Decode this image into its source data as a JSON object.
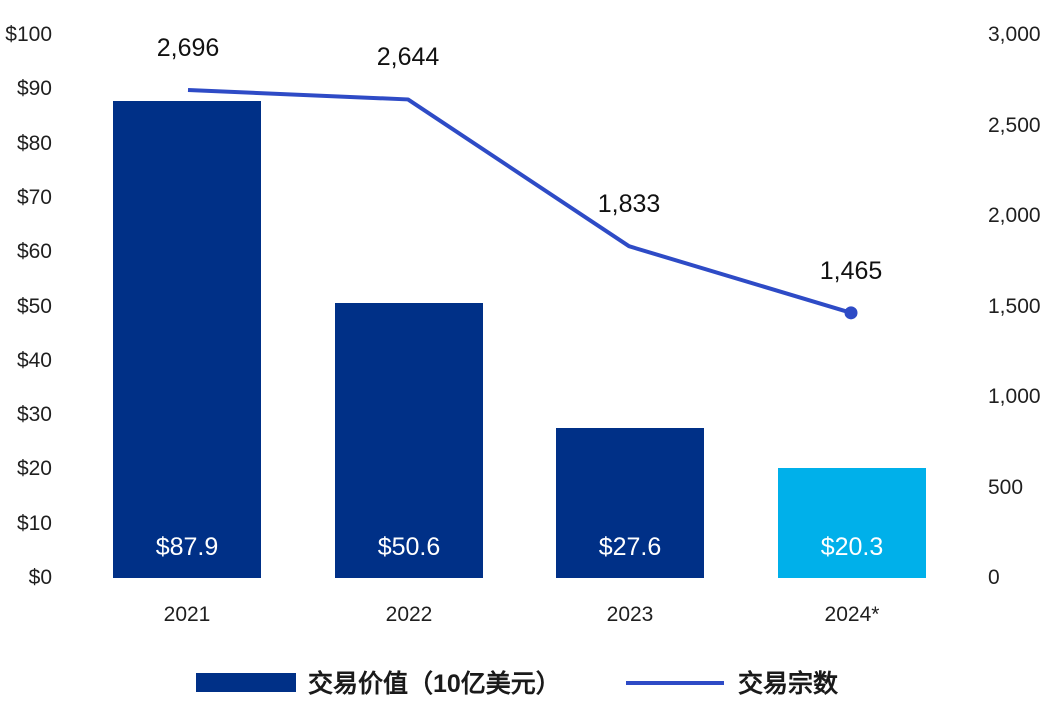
{
  "chart_data": {
    "type": "bar+line",
    "categories": [
      "2021",
      "2022",
      "2023",
      "2024*"
    ],
    "series": [
      {
        "name": "交易价值（10亿美元）",
        "type": "bar",
        "axis": "left",
        "values": [
          87.9,
          50.6,
          27.6,
          20.3
        ],
        "labels": [
          "$87.9",
          "$50.6",
          "$27.6",
          "$20.3"
        ],
        "colors": [
          "#003087",
          "#003087",
          "#003087",
          "#00b0ea"
        ]
      },
      {
        "name": "交易宗数",
        "type": "line",
        "axis": "right",
        "values": [
          2696,
          2644,
          1833,
          1465
        ],
        "labels": [
          "2,696",
          "2,644",
          "1,833",
          "1,465"
        ],
        "color": "#2e4bc6"
      }
    ],
    "left_axis": {
      "ticks": [
        "$0",
        "$10",
        "$20",
        "$30",
        "$40",
        "$50",
        "$60",
        "$70",
        "$80",
        "$90",
        "$100"
      ],
      "ylim": [
        0,
        100
      ]
    },
    "right_axis": {
      "ticks": [
        "0",
        "500",
        "1,000",
        "1,500",
        "2,000",
        "2,500",
        "3,000"
      ],
      "ylim": [
        0,
        3000
      ]
    },
    "title": "",
    "xlabel": "",
    "ylabel": "",
    "grid": false,
    "legend_position": "bottom"
  },
  "legend": {
    "bar_label": "交易价值（10亿美元）",
    "line_label": "交易宗数"
  }
}
